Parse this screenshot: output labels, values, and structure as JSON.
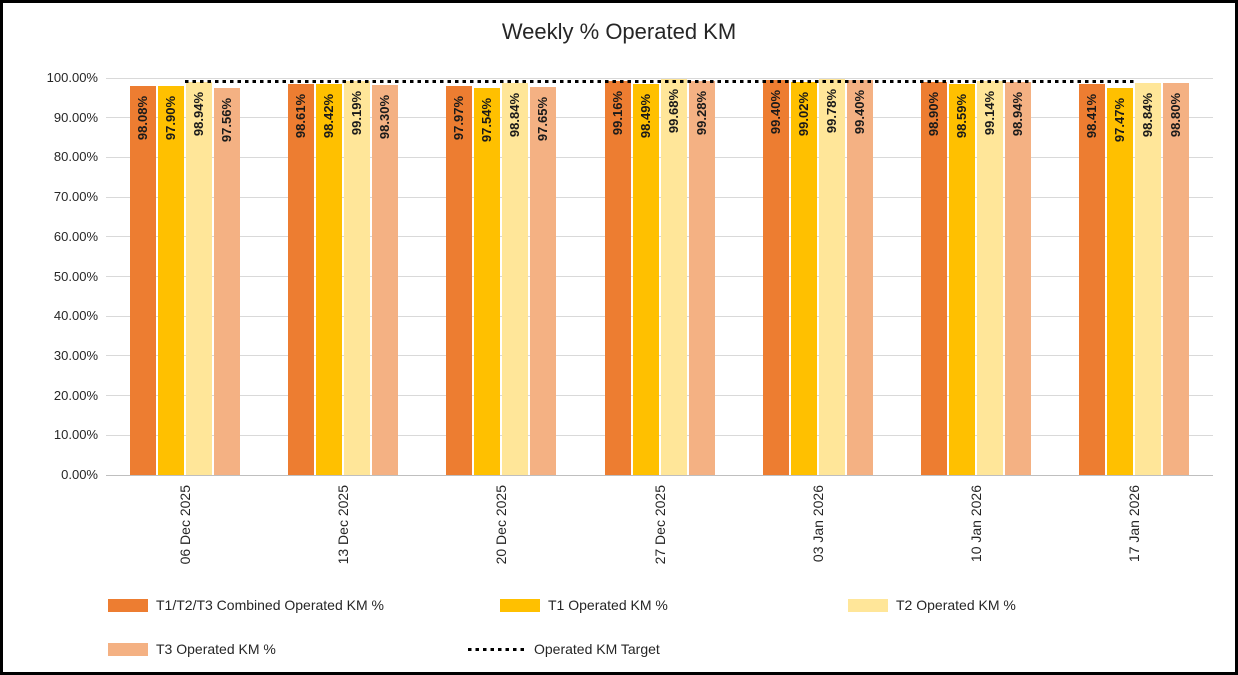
{
  "chart_data": {
    "type": "bar",
    "title": "Weekly % Operated KM",
    "categories": [
      "06 Dec 2025",
      "13 Dec 2025",
      "20 Dec 2025",
      "27 Dec 2025",
      "03 Jan 2026",
      "10 Jan 2026",
      "17 Jan 2026"
    ],
    "series": [
      {
        "id": "combined",
        "name": "T1/T2/T3 Combined Operated KM %",
        "color": "#ED7D31",
        "values": [
          98.08,
          98.61,
          97.97,
          99.16,
          99.4,
          98.9,
          98.41
        ]
      },
      {
        "id": "t1",
        "name": "T1 Operated KM %",
        "color": "#FFC000",
        "values": [
          97.9,
          98.42,
          97.54,
          98.49,
          99.02,
          98.59,
          97.47
        ]
      },
      {
        "id": "t2",
        "name": "T2 Operated KM %",
        "color": "#FFE699",
        "values": [
          98.94,
          99.19,
          98.84,
          99.68,
          99.78,
          99.14,
          98.84
        ]
      },
      {
        "id": "t3",
        "name": "T3 Operated KM %",
        "color": "#F4B183",
        "values": [
          97.56,
          98.3,
          97.65,
          99.28,
          99.4,
          98.94,
          98.8
        ]
      }
    ],
    "target": {
      "name": "Operated KM Target",
      "value": 99.0,
      "color": "#000000",
      "line_style": "dotted"
    },
    "y_axis": {
      "min": 0,
      "max": 100,
      "step": 10,
      "ticks": [
        "0.00%",
        "10.00%",
        "20.00%",
        "30.00%",
        "40.00%",
        "50.00%",
        "60.00%",
        "70.00%",
        "80.00%",
        "90.00%",
        "100.00%"
      ]
    },
    "ylim": [
      0,
      100
    ],
    "xlabel": "",
    "ylabel": "",
    "grid": true,
    "legend_position": "bottom",
    "data_label_format": "0.00%"
  }
}
